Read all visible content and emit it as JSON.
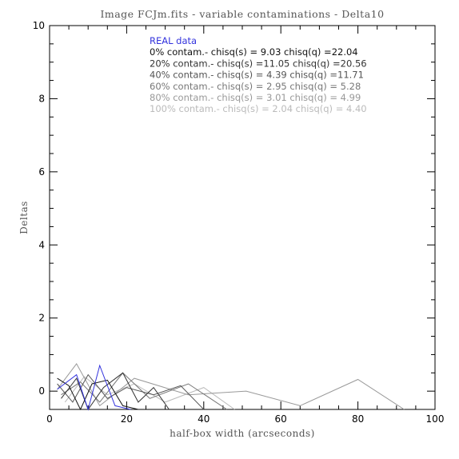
{
  "chart_data": {
    "type": "line",
    "title": "Image FCJm.fits - variable contaminations - Delta10",
    "xlabel": "half-box width (arcseconds)",
    "ylabel": "Deltas",
    "xlim": [
      0,
      100
    ],
    "ylim": [
      -0.5,
      10
    ],
    "xticks": [
      0,
      20,
      40,
      60,
      80,
      100
    ],
    "yticks": [
      0,
      2,
      4,
      6,
      8,
      10
    ],
    "legend_position": "top-center",
    "series": [
      {
        "name": "REAL data",
        "color": "#3333dd",
        "x": [
          2,
          7,
          10,
          13,
          17,
          21
        ],
        "y": [
          0.05,
          0.45,
          -0.5,
          0.7,
          -0.4,
          -0.5
        ]
      },
      {
        "name": "0% contam.- chisq(s) = 9.03 chisq(q) =22.04",
        "color": "#111111",
        "x": [
          2,
          5,
          8,
          11,
          15,
          19,
          23
        ],
        "y": [
          0.35,
          0.15,
          -0.5,
          0.2,
          0.3,
          -0.4,
          -0.5
        ]
      },
      {
        "name": "20% contam.- chisq(s) =11.05 chisq(q) =20.56",
        "color": "#333333",
        "x": [
          3,
          7,
          10,
          14,
          19,
          23,
          27,
          31
        ],
        "y": [
          -0.2,
          0.35,
          -0.5,
          0.1,
          0.5,
          -0.3,
          0.1,
          -0.5
        ]
      },
      {
        "name": "40% contam.- chisq(s) = 4.39 chisq(q) =11.71",
        "color": "#555555",
        "x": [
          2,
          6,
          10,
          15,
          20,
          27,
          34,
          40
        ],
        "y": [
          0.2,
          -0.3,
          0.45,
          -0.2,
          0.1,
          -0.1,
          0.15,
          -0.5
        ]
      },
      {
        "name": "60% contam.- chisq(s) = 2.95 chisq(q) = 5.28",
        "color": "#777777",
        "x": [
          3,
          8,
          13,
          19,
          26,
          36,
          46
        ],
        "y": [
          -0.1,
          0.25,
          -0.3,
          0.5,
          -0.2,
          0.2,
          -0.5
        ]
      },
      {
        "name": "80% contam.- chisq(s) = 3.01 chisq(q) = 4.99",
        "color": "#999999",
        "x": [
          2,
          7,
          13,
          22,
          36,
          51,
          65,
          80,
          92
        ],
        "y": [
          0.05,
          0.75,
          -0.4,
          0.35,
          -0.1,
          0.0,
          -0.4,
          0.32,
          -0.5
        ]
      },
      {
        "name": "100% contam.- chisq(s) = 2.04 chisq(q) = 4.40",
        "color": "#bbbbbb",
        "x": [
          4,
          9,
          15,
          22,
          30,
          40,
          48
        ],
        "y": [
          -0.3,
          0.4,
          -0.1,
          0.2,
          -0.3,
          0.1,
          -0.5
        ]
      }
    ]
  }
}
